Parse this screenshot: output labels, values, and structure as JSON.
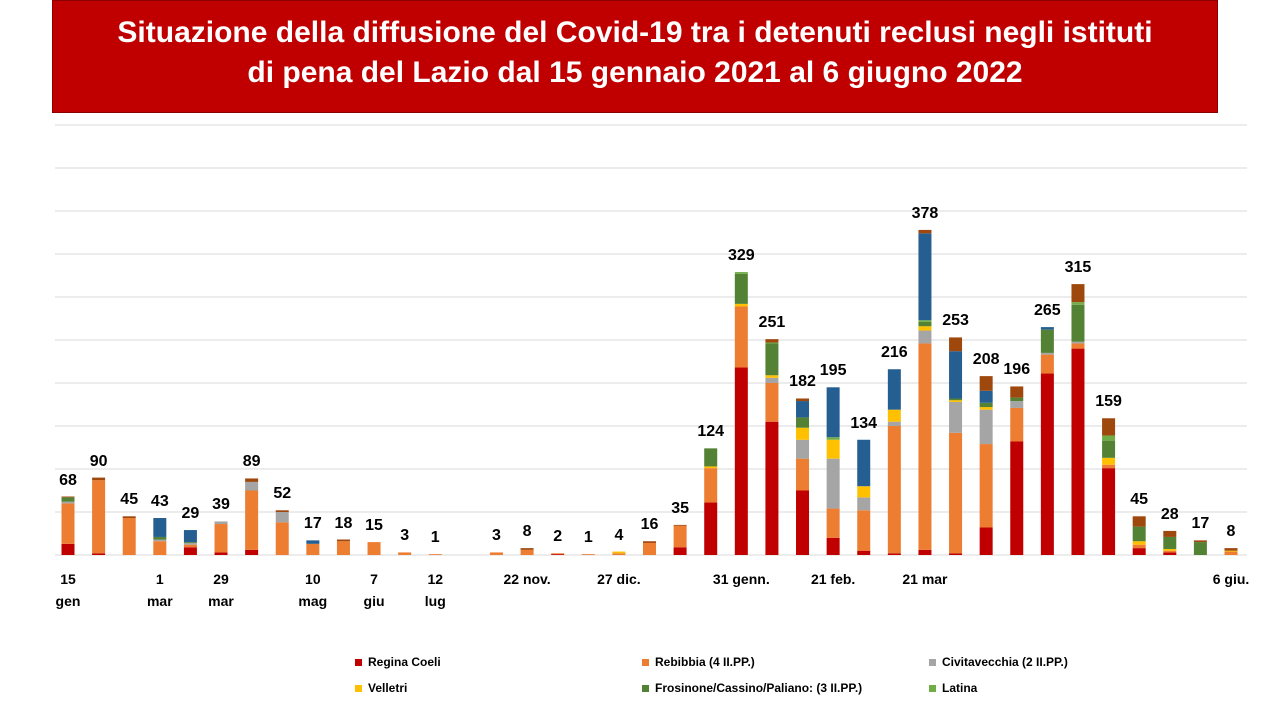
{
  "chart_data": {
    "type": "stacked_bar",
    "title": "Situazione della diffusione del Covid-19 tra i detenuti reclusi negli istituti\ndi pena del Lazio dal 15 gennaio 2021 al 6 giugno 2022",
    "categories": [
      "15\ngen",
      null,
      null,
      "1\nmar",
      null,
      "29\nmar",
      null,
      null,
      "10\nmag",
      null,
      "7\ngiu",
      null,
      "12\nlug",
      null,
      null,
      "22 nov.",
      null,
      null,
      "27 dic.",
      null,
      null,
      null,
      "31 genn.",
      null,
      null,
      "21 feb.",
      null,
      null,
      "21 mar",
      null,
      null,
      null,
      null,
      null,
      null,
      null,
      null,
      null,
      "6 giu."
    ],
    "totals": [
      68,
      90,
      45,
      43,
      29,
      39,
      89,
      52,
      17,
      18,
      15,
      3,
      1,
      null,
      3,
      8,
      2,
      1,
      4,
      16,
      35,
      124,
      329,
      251,
      182,
      195,
      134,
      216,
      378,
      253,
      208,
      196,
      265,
      315,
      159,
      45,
      28,
      17,
      8
    ],
    "series": [
      {
        "name": "Regina Coeli",
        "color": "#c00000",
        "values": [
          13,
          2,
          0,
          0,
          9,
          3,
          6,
          0,
          0,
          0,
          0,
          0,
          0,
          null,
          0,
          0,
          1,
          0,
          0,
          0,
          9,
          61,
          218,
          155,
          75,
          20,
          5,
          2,
          6,
          2,
          32,
          132,
          211,
          240,
          101,
          8,
          3,
          0,
          0
        ]
      },
      {
        "name": "Rebibbia (4 II.PP.)",
        "color": "#ed7d31",
        "values": [
          47,
          85,
          43,
          16,
          3,
          33,
          69,
          38,
          13,
          16,
          15,
          3,
          1,
          null,
          3,
          6,
          1,
          1,
          2,
          14,
          25,
          40,
          71,
          45,
          37,
          34,
          47,
          148,
          240,
          140,
          97,
          39,
          22,
          6,
          4,
          4,
          2,
          0,
          4
        ]
      },
      {
        "name": "Civitavecchia (2 II.PP.)",
        "color": "#a5a5a5",
        "values": [
          2,
          0,
          0,
          2,
          2,
          3,
          10,
          12,
          0,
          0,
          0,
          0,
          0,
          null,
          0,
          0,
          0,
          0,
          0,
          0,
          0,
          0,
          0,
          6,
          22,
          58,
          15,
          5,
          15,
          36,
          40,
          8,
          2,
          2,
          0,
          0,
          0,
          0,
          0
        ]
      },
      {
        "name": "Velletri",
        "color": "#ffc000",
        "values": [
          0,
          0,
          0,
          0,
          0,
          0,
          0,
          0,
          0,
          0,
          0,
          0,
          0,
          null,
          0,
          0,
          0,
          0,
          2,
          0,
          0,
          2,
          3,
          3,
          14,
          22,
          13,
          14,
          5,
          2,
          3,
          0,
          0,
          0,
          8,
          4,
          2,
          0,
          1
        ]
      },
      {
        "name": "Frosinone/Cassino/Paliano: (3 II.PP.)",
        "color": "#548235",
        "values": [
          5,
          0,
          0,
          3,
          1,
          0,
          0,
          0,
          0,
          0,
          0,
          0,
          0,
          null,
          0,
          0,
          0,
          0,
          0,
          0,
          0,
          21,
          35,
          37,
          12,
          0,
          0,
          0,
          5,
          2,
          5,
          4,
          27,
          43,
          20,
          17,
          14,
          15,
          0
        ]
      },
      {
        "name": "Latina",
        "color": "#70ad47",
        "values": [
          0,
          0,
          0,
          0,
          0,
          0,
          0,
          0,
          0,
          0,
          0,
          0,
          0,
          null,
          0,
          0,
          0,
          0,
          0,
          0,
          0,
          0,
          2,
          1,
          0,
          3,
          0,
          0,
          2,
          0,
          0,
          0,
          0,
          3,
          6,
          0,
          0,
          0,
          0
        ]
      },
      {
        "name": null,
        "color": "#255e91",
        "values": [
          0,
          0,
          0,
          22,
          14,
          0,
          0,
          0,
          4,
          0,
          0,
          0,
          0,
          null,
          0,
          0,
          0,
          0,
          0,
          0,
          0,
          0,
          0,
          0,
          19,
          58,
          54,
          47,
          101,
          55,
          14,
          0,
          3,
          0,
          0,
          0,
          0,
          0,
          0
        ]
      },
      {
        "name": null,
        "color": "#9e480e",
        "values": [
          1,
          3,
          2,
          0,
          0,
          0,
          4,
          2,
          0,
          2,
          0,
          0,
          0,
          null,
          0,
          2,
          0,
          0,
          0,
          2,
          1,
          0,
          0,
          4,
          3,
          0,
          0,
          0,
          4,
          16,
          17,
          13,
          0,
          21,
          20,
          12,
          7,
          2,
          3
        ]
      }
    ],
    "ylim": [
      0,
      500
    ],
    "yticks": [
      0,
      50,
      100,
      150,
      200,
      250,
      300,
      350,
      400,
      450,
      500
    ],
    "grid": true
  }
}
